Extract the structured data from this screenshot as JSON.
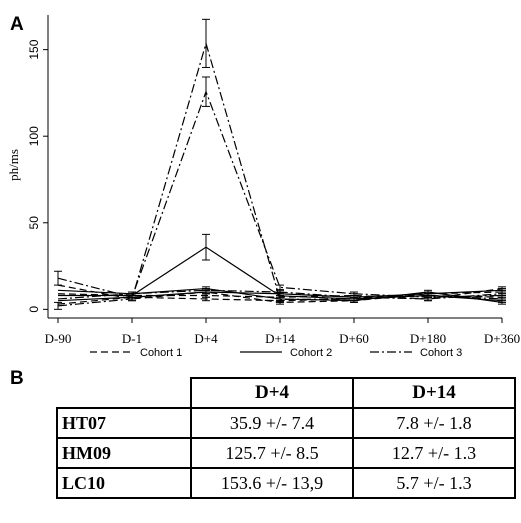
{
  "panel_a_label": "A",
  "panel_b_label": "B",
  "chart_data": {
    "type": "line",
    "ylabel": "ph/ms",
    "xlabel": "",
    "title": "",
    "categories": [
      "D-90",
      "D-1",
      "D+4",
      "D+14",
      "D+60",
      "D+180",
      "D+360"
    ],
    "yticks": [
      0,
      50,
      100,
      150
    ],
    "ylim": [
      -5,
      170
    ],
    "legend_position": "bottom",
    "series": [
      {
        "name": "Cohort 1",
        "dash": "dashed",
        "values": [
          3,
          7,
          6,
          5,
          6,
          8,
          7
        ],
        "errors": [
          0,
          1,
          1,
          1,
          1,
          1,
          1
        ]
      },
      {
        "name": "Cohort 1",
        "dash": "dashed",
        "values": [
          14,
          6,
          10,
          4,
          5,
          9,
          10
        ],
        "errors": [
          0,
          1,
          1,
          1,
          1,
          1,
          1
        ]
      },
      {
        "name": "Cohort 1",
        "dash": "dashed",
        "values": [
          9,
          8,
          8,
          7,
          8,
          6,
          12
        ],
        "errors": [
          0,
          1,
          1,
          1,
          1,
          1,
          1
        ]
      },
      {
        "name": "Cohort 2",
        "dash": "solid",
        "values": [
          8,
          8,
          35.9,
          7.8,
          6,
          8,
          5
        ],
        "errors": [
          0,
          1,
          7.4,
          1.8,
          1,
          1,
          1
        ]
      },
      {
        "name": "Cohort 2",
        "dash": "solid",
        "values": [
          5,
          7,
          10,
          9,
          7,
          9,
          11
        ],
        "errors": [
          0,
          1,
          1,
          1,
          1,
          1,
          1
        ]
      },
      {
        "name": "Cohort 2",
        "dash": "solid",
        "values": [
          11,
          9,
          12,
          6,
          5,
          10,
          4
        ],
        "errors": [
          0,
          1,
          1,
          1,
          1,
          1,
          1
        ]
      },
      {
        "name": "Cohort 3",
        "dash": "dashdot",
        "values": [
          18,
          7,
          125.7,
          12.7,
          9,
          7,
          8
        ],
        "errors": [
          4,
          1,
          8.5,
          1.3,
          1,
          1,
          1
        ]
      },
      {
        "name": "Cohort 3",
        "dash": "dashdot",
        "values": [
          2,
          6,
          153.6,
          5.7,
          6,
          8,
          6
        ],
        "errors": [
          2,
          1,
          13.9,
          1.3,
          1,
          1,
          1
        ]
      },
      {
        "name": "Cohort 3",
        "dash": "dashdot",
        "values": [
          6,
          9,
          11,
          10,
          7,
          6,
          9
        ],
        "errors": [
          0,
          1,
          1,
          1,
          1,
          1,
          1
        ]
      }
    ]
  },
  "legend": [
    {
      "label": "Cohort  1",
      "dash": "dashed"
    },
    {
      "label": "Cohort  2",
      "dash": "solid"
    },
    {
      "label": "Cohort  3",
      "dash": "dashdot"
    }
  ],
  "table": {
    "headers": [
      "D+4",
      "D+14"
    ],
    "rows": [
      {
        "name": "HT07",
        "cells": [
          "35.9 +/- 7.4",
          "7.8 +/- 1.8"
        ]
      },
      {
        "name": "HM09",
        "cells": [
          "125.7 +/- 8.5",
          "12.7 +/- 1.3"
        ]
      },
      {
        "name": "LC10",
        "cells": [
          "153.6 +/- 13,9",
          "5.7 +/- 1.3"
        ]
      }
    ]
  }
}
